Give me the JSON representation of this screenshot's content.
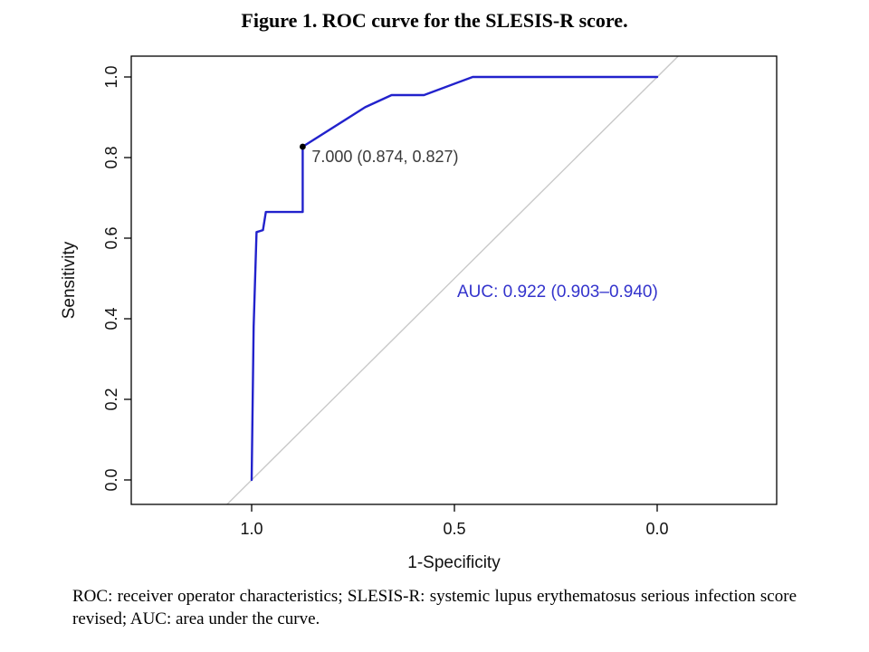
{
  "figure": {
    "title": "Figure 1. ROC curve for the SLESIS-R score.",
    "caption": "ROC: receiver operator characteristics; SLESIS-R: systemic lupus erythematosus serious infection score revised; AUC: area under the curve."
  },
  "chart_data": {
    "type": "line",
    "title": "ROC curve for the SLESIS-R score",
    "xlabel": "1-Specificity",
    "ylabel": "Sensitivity",
    "xlim_specificity": [
      1.0,
      0.0
    ],
    "ylim": [
      0.0,
      1.0
    ],
    "grid": false,
    "x_ticks": [
      {
        "label": "1.0",
        "value": 1.0
      },
      {
        "label": "0.5",
        "value": 0.5
      },
      {
        "label": "0.0",
        "value": 0.0
      }
    ],
    "y_ticks": [
      {
        "label": "0.0",
        "value": 0.0
      },
      {
        "label": "0.2",
        "value": 0.2
      },
      {
        "label": "0.4",
        "value": 0.4
      },
      {
        "label": "0.6",
        "value": 0.6
      },
      {
        "label": "0.8",
        "value": 0.8
      },
      {
        "label": "1.0",
        "value": 1.0
      }
    ],
    "series": [
      {
        "name": "ROC curve",
        "color": "#2222cc",
        "points_specificity_sensitivity": [
          [
            1.0,
            0.0
          ],
          [
            0.995,
            0.38
          ],
          [
            0.988,
            0.615
          ],
          [
            0.972,
            0.62
          ],
          [
            0.965,
            0.665
          ],
          [
            0.874,
            0.665
          ],
          [
            0.874,
            0.827
          ],
          [
            0.72,
            0.925
          ],
          [
            0.655,
            0.955
          ],
          [
            0.575,
            0.955
          ],
          [
            0.455,
            1.0
          ],
          [
            0.0,
            1.0
          ]
        ]
      }
    ],
    "reference_line": {
      "name": "chance diagonal",
      "color": "#c8c8c8",
      "from_specificity_sensitivity": [
        1.0,
        0.0
      ],
      "to_specificity_sensitivity": [
        0.0,
        1.0
      ]
    },
    "threshold_annotation": {
      "label": "7.000 (0.874, 0.827)",
      "threshold": 7.0,
      "specificity": 0.874,
      "sensitivity": 0.827,
      "marker_color": "#000000",
      "text_color": "#3a3a3a"
    },
    "auc_annotation": {
      "label": "AUC: 0.922 (0.903–0.940)",
      "value": 0.922,
      "ci_low": 0.903,
      "ci_high": 0.94,
      "color": "#3333cc"
    }
  }
}
